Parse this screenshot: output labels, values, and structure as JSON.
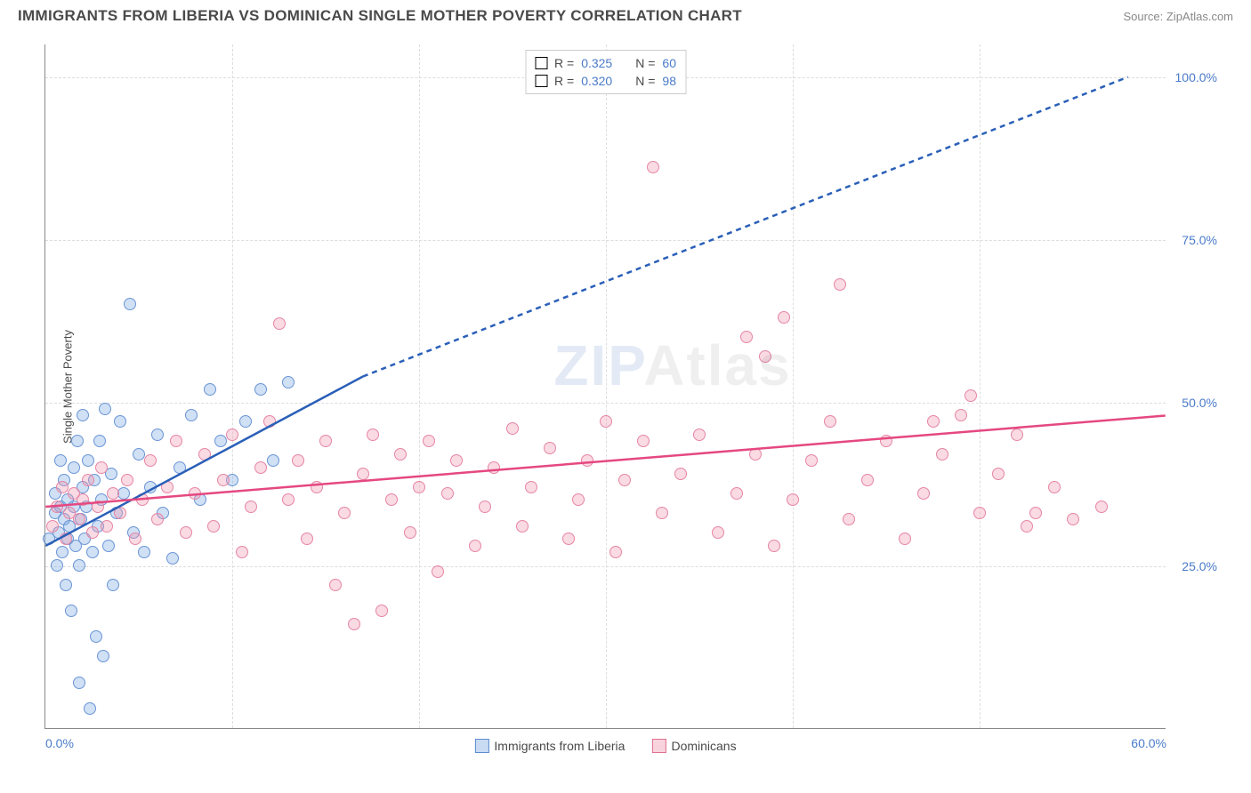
{
  "header": {
    "title": "IMMIGRANTS FROM LIBERIA VS DOMINICAN SINGLE MOTHER POVERTY CORRELATION CHART",
    "source": "Source: ZipAtlas.com"
  },
  "y_axis_label": "Single Mother Poverty",
  "watermark": {
    "pre": "ZIP",
    "post": "Atlas"
  },
  "chart": {
    "type": "scatter",
    "background_color": "#ffffff",
    "grid_color": "#dddddd",
    "axis_color": "#888888",
    "text_color": "#4a4a4a",
    "tick_label_color": "#4a7bc8",
    "label_fontsize": 13,
    "tick_fontsize": 14,
    "title_fontsize": 17,
    "marker_size": 14,
    "xlim": [
      0,
      60
    ],
    "ylim": [
      0,
      105
    ],
    "x_ticks": [
      {
        "value": 0,
        "label": "0.0%"
      },
      {
        "value": 60,
        "label": "60.0%"
      }
    ],
    "x_grid_values": [
      10,
      20,
      30,
      40,
      50
    ],
    "y_ticks": [
      {
        "value": 25,
        "label": "25.0%"
      },
      {
        "value": 50,
        "label": "50.0%"
      },
      {
        "value": 75,
        "label": "75.0%"
      },
      {
        "value": 100,
        "label": "100.0%"
      }
    ],
    "series": [
      {
        "id": "liberia",
        "name": "Immigrants from Liberia",
        "color_fill": "rgba(120,165,225,0.35)",
        "color_stroke": "#6a95d5",
        "line_color": "#2a5fb8",
        "line_width": 2.5,
        "R": "0.325",
        "N": "60",
        "trend": {
          "solid": {
            "x1": 0,
            "y1": 28,
            "x2": 17,
            "y2": 54
          },
          "dashed": {
            "x1": 17,
            "y1": 54,
            "x2": 58,
            "y2": 100
          }
        },
        "points": [
          {
            "x": 0.2,
            "y": 29
          },
          {
            "x": 0.5,
            "y": 33
          },
          {
            "x": 0.5,
            "y": 36
          },
          {
            "x": 0.6,
            "y": 25
          },
          {
            "x": 0.7,
            "y": 30
          },
          {
            "x": 0.8,
            "y": 34
          },
          {
            "x": 0.8,
            "y": 41
          },
          {
            "x": 0.9,
            "y": 27
          },
          {
            "x": 1.0,
            "y": 32
          },
          {
            "x": 1.0,
            "y": 38
          },
          {
            "x": 1.1,
            "y": 22
          },
          {
            "x": 1.2,
            "y": 29
          },
          {
            "x": 1.2,
            "y": 35
          },
          {
            "x": 1.3,
            "y": 31
          },
          {
            "x": 1.4,
            "y": 18
          },
          {
            "x": 1.5,
            "y": 34
          },
          {
            "x": 1.5,
            "y": 40
          },
          {
            "x": 1.6,
            "y": 28
          },
          {
            "x": 1.7,
            "y": 44
          },
          {
            "x": 1.8,
            "y": 25
          },
          {
            "x": 1.8,
            "y": 7
          },
          {
            "x": 1.9,
            "y": 32
          },
          {
            "x": 2.0,
            "y": 37
          },
          {
            "x": 2.0,
            "y": 48
          },
          {
            "x": 2.1,
            "y": 29
          },
          {
            "x": 2.2,
            "y": 34
          },
          {
            "x": 2.3,
            "y": 41
          },
          {
            "x": 2.4,
            "y": 3
          },
          {
            "x": 2.5,
            "y": 27
          },
          {
            "x": 2.6,
            "y": 38
          },
          {
            "x": 2.7,
            "y": 14
          },
          {
            "x": 2.8,
            "y": 31
          },
          {
            "x": 2.9,
            "y": 44
          },
          {
            "x": 3.0,
            "y": 35
          },
          {
            "x": 3.1,
            "y": 11
          },
          {
            "x": 3.2,
            "y": 49
          },
          {
            "x": 3.4,
            "y": 28
          },
          {
            "x": 3.5,
            "y": 39
          },
          {
            "x": 3.6,
            "y": 22
          },
          {
            "x": 3.8,
            "y": 33
          },
          {
            "x": 4.0,
            "y": 47
          },
          {
            "x": 4.2,
            "y": 36
          },
          {
            "x": 4.5,
            "y": 65
          },
          {
            "x": 4.7,
            "y": 30
          },
          {
            "x": 5.0,
            "y": 42
          },
          {
            "x": 5.3,
            "y": 27
          },
          {
            "x": 5.6,
            "y": 37
          },
          {
            "x": 6.0,
            "y": 45
          },
          {
            "x": 6.3,
            "y": 33
          },
          {
            "x": 6.8,
            "y": 26
          },
          {
            "x": 7.2,
            "y": 40
          },
          {
            "x": 7.8,
            "y": 48
          },
          {
            "x": 8.3,
            "y": 35
          },
          {
            "x": 8.8,
            "y": 52
          },
          {
            "x": 9.4,
            "y": 44
          },
          {
            "x": 10.0,
            "y": 38
          },
          {
            "x": 10.7,
            "y": 47
          },
          {
            "x": 11.5,
            "y": 52
          },
          {
            "x": 12.2,
            "y": 41
          },
          {
            "x": 13.0,
            "y": 53
          }
        ]
      },
      {
        "id": "dominicans",
        "name": "Dominicans",
        "color_fill": "rgba(240,150,175,0.35)",
        "color_stroke": "#e585a5",
        "line_color": "#e54880",
        "line_width": 2.5,
        "R": "0.320",
        "N": "98",
        "trend": {
          "solid": {
            "x1": 0,
            "y1": 34,
            "x2": 60,
            "y2": 48
          }
        },
        "points": [
          {
            "x": 0.4,
            "y": 31
          },
          {
            "x": 0.6,
            "y": 34
          },
          {
            "x": 0.9,
            "y": 37
          },
          {
            "x": 1.1,
            "y": 29
          },
          {
            "x": 1.3,
            "y": 33
          },
          {
            "x": 1.5,
            "y": 36
          },
          {
            "x": 1.8,
            "y": 32
          },
          {
            "x": 2.0,
            "y": 35
          },
          {
            "x": 2.3,
            "y": 38
          },
          {
            "x": 2.5,
            "y": 30
          },
          {
            "x": 2.8,
            "y": 34
          },
          {
            "x": 3.0,
            "y": 40
          },
          {
            "x": 3.3,
            "y": 31
          },
          {
            "x": 3.6,
            "y": 36
          },
          {
            "x": 4.0,
            "y": 33
          },
          {
            "x": 4.4,
            "y": 38
          },
          {
            "x": 4.8,
            "y": 29
          },
          {
            "x": 5.2,
            "y": 35
          },
          {
            "x": 5.6,
            "y": 41
          },
          {
            "x": 6.0,
            "y": 32
          },
          {
            "x": 6.5,
            "y": 37
          },
          {
            "x": 7.0,
            "y": 44
          },
          {
            "x": 7.5,
            "y": 30
          },
          {
            "x": 8.0,
            "y": 36
          },
          {
            "x": 8.5,
            "y": 42
          },
          {
            "x": 9.0,
            "y": 31
          },
          {
            "x": 9.5,
            "y": 38
          },
          {
            "x": 10.0,
            "y": 45
          },
          {
            "x": 10.5,
            "y": 27
          },
          {
            "x": 11.0,
            "y": 34
          },
          {
            "x": 11.5,
            "y": 40
          },
          {
            "x": 12.0,
            "y": 47
          },
          {
            "x": 12.5,
            "y": 62
          },
          {
            "x": 13.0,
            "y": 35
          },
          {
            "x": 13.5,
            "y": 41
          },
          {
            "x": 14.0,
            "y": 29
          },
          {
            "x": 14.5,
            "y": 37
          },
          {
            "x": 15.0,
            "y": 44
          },
          {
            "x": 15.5,
            "y": 22
          },
          {
            "x": 16.0,
            "y": 33
          },
          {
            "x": 16.5,
            "y": 16
          },
          {
            "x": 17.0,
            "y": 39
          },
          {
            "x": 17.5,
            "y": 45
          },
          {
            "x": 18.0,
            "y": 18
          },
          {
            "x": 18.5,
            "y": 35
          },
          {
            "x": 19.0,
            "y": 42
          },
          {
            "x": 19.5,
            "y": 30
          },
          {
            "x": 20.0,
            "y": 37
          },
          {
            "x": 20.5,
            "y": 44
          },
          {
            "x": 21.0,
            "y": 24
          },
          {
            "x": 21.5,
            "y": 36
          },
          {
            "x": 22.0,
            "y": 41
          },
          {
            "x": 23.0,
            "y": 28
          },
          {
            "x": 23.5,
            "y": 34
          },
          {
            "x": 24.0,
            "y": 40
          },
          {
            "x": 25.0,
            "y": 46
          },
          {
            "x": 25.5,
            "y": 31
          },
          {
            "x": 26.0,
            "y": 37
          },
          {
            "x": 27.0,
            "y": 43
          },
          {
            "x": 28.0,
            "y": 29
          },
          {
            "x": 28.5,
            "y": 35
          },
          {
            "x": 29.0,
            "y": 41
          },
          {
            "x": 30.0,
            "y": 47
          },
          {
            "x": 30.5,
            "y": 27
          },
          {
            "x": 31.0,
            "y": 38
          },
          {
            "x": 32.0,
            "y": 44
          },
          {
            "x": 32.5,
            "y": 86
          },
          {
            "x": 33.0,
            "y": 33
          },
          {
            "x": 34.0,
            "y": 39
          },
          {
            "x": 35.0,
            "y": 45
          },
          {
            "x": 36.0,
            "y": 30
          },
          {
            "x": 37.0,
            "y": 36
          },
          {
            "x": 37.5,
            "y": 60
          },
          {
            "x": 38.0,
            "y": 42
          },
          {
            "x": 38.5,
            "y": 57
          },
          {
            "x": 39.0,
            "y": 28
          },
          {
            "x": 39.5,
            "y": 63
          },
          {
            "x": 40.0,
            "y": 35
          },
          {
            "x": 41.0,
            "y": 41
          },
          {
            "x": 42.0,
            "y": 47
          },
          {
            "x": 42.5,
            "y": 68
          },
          {
            "x": 43.0,
            "y": 32
          },
          {
            "x": 44.0,
            "y": 38
          },
          {
            "x": 45.0,
            "y": 44
          },
          {
            "x": 46.0,
            "y": 29
          },
          {
            "x": 47.0,
            "y": 36
          },
          {
            "x": 47.5,
            "y": 47
          },
          {
            "x": 48.0,
            "y": 42
          },
          {
            "x": 49.0,
            "y": 48
          },
          {
            "x": 49.5,
            "y": 51
          },
          {
            "x": 50.0,
            "y": 33
          },
          {
            "x": 51.0,
            "y": 39
          },
          {
            "x": 52.0,
            "y": 45
          },
          {
            "x": 52.5,
            "y": 31
          },
          {
            "x": 53.0,
            "y": 33
          },
          {
            "x": 54.0,
            "y": 37
          },
          {
            "x": 55.0,
            "y": 32
          },
          {
            "x": 56.5,
            "y": 34
          }
        ]
      }
    ]
  },
  "top_legend_labels": {
    "r_prefix": "R =",
    "n_prefix": "N ="
  },
  "bottom_legend": [
    {
      "label_ref": 0
    },
    {
      "label_ref": 1
    }
  ]
}
